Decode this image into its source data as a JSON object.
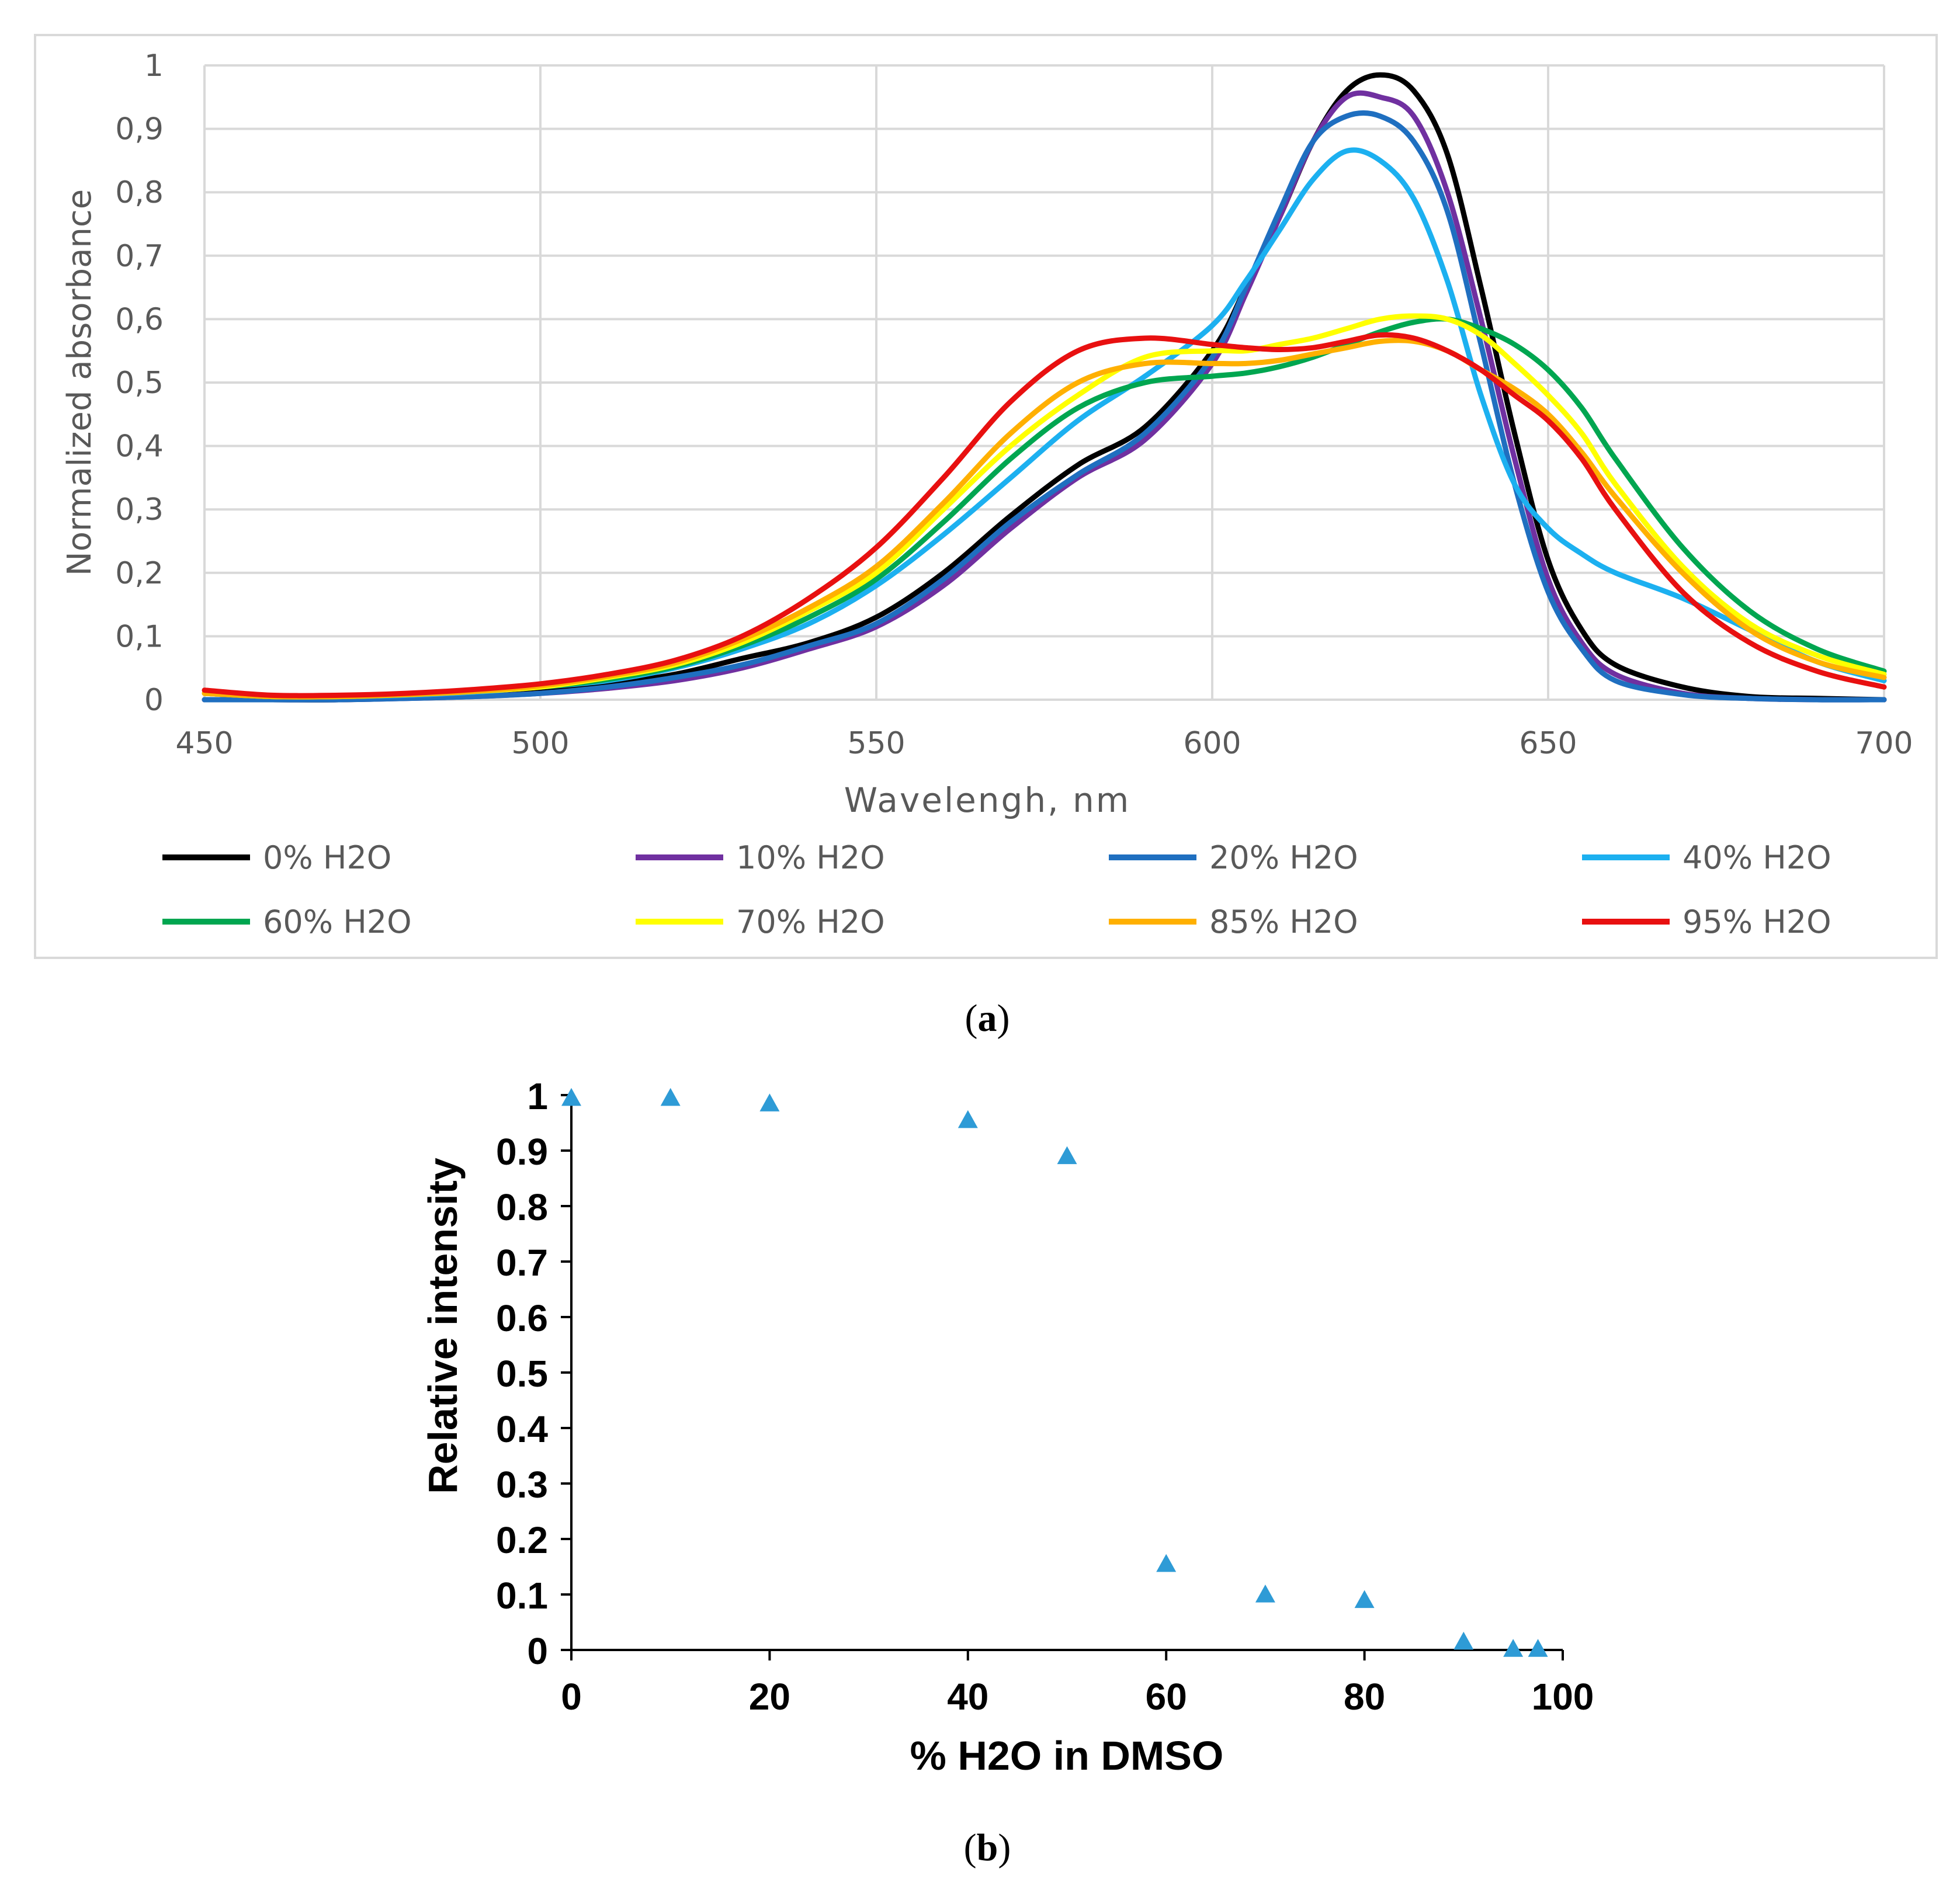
{
  "chart_data": [
    {
      "type": "line",
      "panel_label": "a",
      "title": "",
      "xlabel": "Wavelengh, nm",
      "ylabel": "Normalized absorbance",
      "xlim": [
        450,
        700
      ],
      "ylim": [
        0,
        1
      ],
      "x_ticks": [
        "450",
        "500",
        "550",
        "600",
        "650",
        "700"
      ],
      "y_ticks": [
        "0",
        "0,1",
        "0,2",
        "0,3",
        "0,4",
        "0,5",
        "0,6",
        "0,7",
        "0,8",
        "0,9",
        "1"
      ],
      "grid": true,
      "legend_position": "bottom",
      "x": [
        450,
        460,
        470,
        480,
        490,
        500,
        510,
        520,
        530,
        540,
        550,
        560,
        570,
        580,
        590,
        600,
        605,
        610,
        615,
        620,
        625,
        630,
        635,
        640,
        645,
        650,
        655,
        660,
        670,
        680,
        690,
        700
      ],
      "series": [
        {
          "name": "0% H2O",
          "color": "#000000",
          "values": [
            0.0,
            0.0,
            0.0,
            0.003,
            0.008,
            0.015,
            0.025,
            0.04,
            0.065,
            0.09,
            0.13,
            0.2,
            0.29,
            0.37,
            0.43,
            0.55,
            0.65,
            0.76,
            0.88,
            0.96,
            0.985,
            0.96,
            0.86,
            0.65,
            0.42,
            0.22,
            0.11,
            0.055,
            0.02,
            0.005,
            0.002,
            0.0
          ]
        },
        {
          "name": "10% H2O",
          "color": "#7030A0",
          "values": [
            0.0,
            0.0,
            0.0,
            0.002,
            0.005,
            0.01,
            0.018,
            0.03,
            0.05,
            0.08,
            0.115,
            0.18,
            0.27,
            0.35,
            0.41,
            0.53,
            0.64,
            0.76,
            0.88,
            0.95,
            0.95,
            0.92,
            0.8,
            0.6,
            0.38,
            0.19,
            0.09,
            0.04,
            0.01,
            0.002,
            0.0,
            0.0
          ]
        },
        {
          "name": "20% H2O",
          "color": "#1F6FC0",
          "values": [
            0.0,
            0.0,
            0.0,
            0.002,
            0.005,
            0.01,
            0.02,
            0.035,
            0.055,
            0.085,
            0.12,
            0.19,
            0.28,
            0.355,
            0.42,
            0.54,
            0.65,
            0.77,
            0.88,
            0.92,
            0.92,
            0.88,
            0.77,
            0.56,
            0.34,
            0.17,
            0.08,
            0.03,
            0.008,
            0.002,
            0.0,
            0.0
          ]
        },
        {
          "name": "40% H2O",
          "color": "#1CB0F0",
          "values": [
            0.01,
            0.005,
            0.005,
            0.007,
            0.012,
            0.02,
            0.03,
            0.05,
            0.08,
            0.12,
            0.18,
            0.26,
            0.35,
            0.44,
            0.51,
            0.59,
            0.66,
            0.74,
            0.82,
            0.865,
            0.85,
            0.79,
            0.66,
            0.48,
            0.34,
            0.27,
            0.23,
            0.2,
            0.16,
            0.11,
            0.06,
            0.03
          ]
        },
        {
          "name": "60% H2O",
          "color": "#00A650",
          "values": [
            0.01,
            0.005,
            0.005,
            0.008,
            0.013,
            0.02,
            0.032,
            0.052,
            0.085,
            0.13,
            0.19,
            0.28,
            0.38,
            0.46,
            0.5,
            0.51,
            0.515,
            0.525,
            0.54,
            0.56,
            0.58,
            0.595,
            0.6,
            0.585,
            0.56,
            0.52,
            0.46,
            0.38,
            0.24,
            0.14,
            0.08,
            0.045
          ]
        },
        {
          "name": "70% H2O",
          "color": "#FFFF00",
          "values": [
            0.01,
            0.005,
            0.005,
            0.008,
            0.013,
            0.02,
            0.035,
            0.055,
            0.09,
            0.14,
            0.2,
            0.3,
            0.4,
            0.48,
            0.54,
            0.55,
            0.55,
            0.56,
            0.57,
            0.585,
            0.6,
            0.605,
            0.6,
            0.575,
            0.53,
            0.48,
            0.42,
            0.34,
            0.21,
            0.12,
            0.07,
            0.04
          ]
        },
        {
          "name": "85% H2O",
          "color": "#FFB000",
          "values": [
            0.01,
            0.005,
            0.005,
            0.008,
            0.013,
            0.022,
            0.037,
            0.058,
            0.095,
            0.145,
            0.21,
            0.31,
            0.42,
            0.5,
            0.53,
            0.53,
            0.53,
            0.535,
            0.545,
            0.555,
            0.565,
            0.565,
            0.55,
            0.52,
            0.49,
            0.45,
            0.39,
            0.32,
            0.2,
            0.11,
            0.06,
            0.035
          ]
        },
        {
          "name": "95% H2O",
          "color": "#E81010",
          "values": [
            0.015,
            0.007,
            0.007,
            0.01,
            0.016,
            0.025,
            0.04,
            0.062,
            0.1,
            0.16,
            0.24,
            0.35,
            0.47,
            0.55,
            0.57,
            0.56,
            0.555,
            0.552,
            0.555,
            0.565,
            0.575,
            0.57,
            0.55,
            0.52,
            0.48,
            0.44,
            0.38,
            0.3,
            0.17,
            0.09,
            0.045,
            0.02
          ]
        }
      ]
    },
    {
      "type": "scatter",
      "panel_label": "b",
      "title": "",
      "xlabel": "% H2O in DMSO",
      "ylabel": "Relative intensity",
      "xlim": [
        0,
        100
      ],
      "ylim": [
        0,
        1
      ],
      "x_ticks": [
        "0",
        "20",
        "40",
        "60",
        "80",
        "100"
      ],
      "y_ticks": [
        "0",
        "0.1",
        "0.2",
        "0.3",
        "0.4",
        "0.5",
        "0.6",
        "0.7",
        "0.8",
        "0.9",
        "1"
      ],
      "grid": false,
      "marker": "triangle",
      "color": "#2E9BD6",
      "x": [
        0,
        10,
        20,
        40,
        50,
        60,
        70,
        80,
        90,
        95,
        97.5
      ],
      "y": [
        0.995,
        0.995,
        0.985,
        0.955,
        0.89,
        0.155,
        0.1,
        0.09,
        0.015,
        0.002,
        0.002
      ]
    }
  ]
}
